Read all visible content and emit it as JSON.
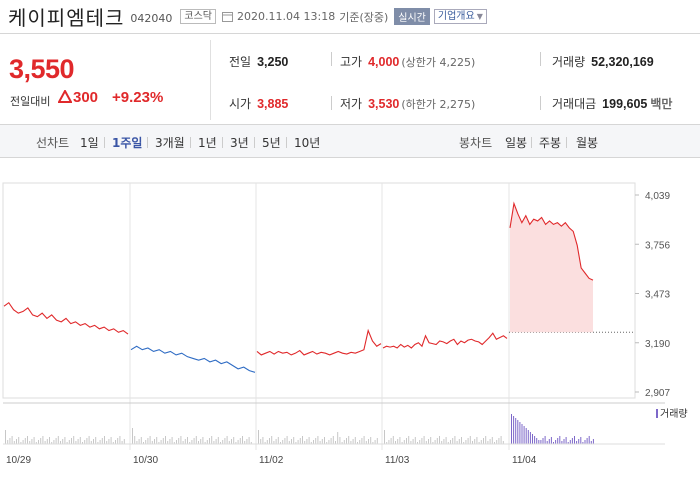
{
  "header": {
    "name": "케이피엠테크",
    "code": "042040",
    "market": "코스닥",
    "datetime": "2020.11.04 13:18",
    "basis": "기준(장중)",
    "live_label": "실시간",
    "overview_label": "기업개요"
  },
  "summary": {
    "price": "3,550",
    "change_label": "전일대비",
    "change_value": "300",
    "change_pct": "+9.23%",
    "prev_close_label": "전일",
    "prev_close": "3,250",
    "high_label": "고가",
    "high": "4,000",
    "upper_limit": "(상한가 4,225)",
    "volume_label": "거래량",
    "volume": "52,320,169",
    "open_label": "시가",
    "open": "3,885",
    "low_label": "저가",
    "low": "3,530",
    "lower_limit": "(하한가 2,275)",
    "amount_label": "거래대금",
    "amount": "199,605",
    "amount_unit": "백만"
  },
  "tabs": {
    "line_title": "선차트",
    "line": [
      "1일",
      "1주일",
      "3개월",
      "1년",
      "3년",
      "5년",
      "10년"
    ],
    "active": "1주일",
    "candle_title": "봉차트",
    "candle": [
      "일봉",
      "주봉",
      "월봉"
    ]
  },
  "colors": {
    "up": "#e0292b",
    "down": "#2f6cc4",
    "accent": "#3a55a5"
  },
  "chart_data": {
    "type": "line",
    "title": "",
    "x_labels": [
      "10/29",
      "10/30",
      "11/02",
      "11/03",
      "11/04"
    ],
    "y_ticks": [
      "4,039",
      "3,756",
      "3,473",
      "3,190",
      "2,907"
    ],
    "ylim": [
      2907,
      4039
    ],
    "prev_close": 3250,
    "volume_label": "거래량",
    "series": [
      {
        "segment": "10/29",
        "color": "up",
        "values": [
          3400,
          3420,
          3380,
          3360,
          3370,
          3390,
          3350,
          3340,
          3360,
          3330,
          3350,
          3320,
          3310,
          3330,
          3300,
          3310,
          3290,
          3300,
          3280,
          3290,
          3270,
          3280,
          3260,
          3270,
          3250,
          3260,
          3240
        ]
      },
      {
        "segment": "10/30",
        "color": "down",
        "values": [
          3150,
          3170,
          3150,
          3160,
          3140,
          3150,
          3130,
          3140,
          3120,
          3130,
          3110,
          3100,
          3090,
          3100,
          3080,
          3090,
          3070,
          3080,
          3060,
          3040,
          3050,
          3030,
          3020
        ]
      },
      {
        "segment": "11/02",
        "color": "up",
        "values": [
          3140,
          3120,
          3130,
          3140,
          3125,
          3140,
          3130,
          3135,
          3120,
          3130,
          3145,
          3120,
          3130,
          3140,
          3125,
          3135,
          3130,
          3120,
          3130,
          3140,
          3130,
          3125,
          3135,
          3130,
          3140,
          3150,
          3260,
          3200,
          3170,
          3185
        ]
      },
      {
        "segment": "11/03",
        "color": "up",
        "values": [
          3160,
          3170,
          3165,
          3170,
          3160,
          3180,
          3165,
          3175,
          3160,
          3180,
          3190,
          3170,
          3230,
          3190,
          3185,
          3180,
          3200,
          3195,
          3185,
          3200,
          3210,
          3180,
          3200,
          3190,
          3205,
          3210,
          3200,
          3195,
          3180,
          3200,
          3220,
          3245,
          3210,
          3220,
          3230,
          3215
        ]
      },
      {
        "segment": "11/04",
        "color": "up",
        "values": [
          3850,
          3990,
          3930,
          3880,
          3920,
          3870,
          3900,
          3890,
          3910,
          3870,
          3890,
          3870,
          3880,
          3860,
          3880,
          3850,
          3830,
          3750,
          3620,
          3590,
          3560,
          3550
        ]
      }
    ]
  }
}
